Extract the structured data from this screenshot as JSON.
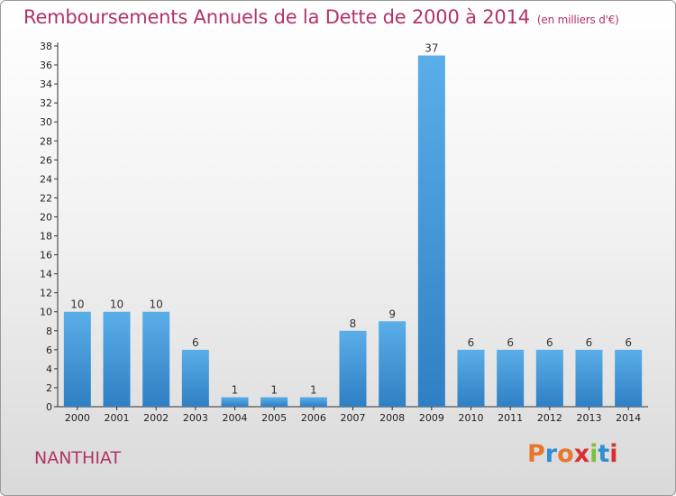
{
  "header": {
    "title": "Remboursements Annuels de la Dette de 2000 à 2014",
    "subtitle": "(en milliers d'€)"
  },
  "footer": {
    "commune": "NANTHIAT",
    "logo": "Proxiti",
    "logo_colors": [
      "#e8772e",
      "#2e8fd1",
      "#e8772e",
      "#d93030",
      "#7fbf3f",
      "#2e8fd1",
      "#d93030"
    ]
  },
  "chart_data": {
    "type": "bar",
    "title": "Remboursements Annuels de la Dette de 2000 à 2014",
    "subtitle": "(en milliers d'€)",
    "categories": [
      "2000",
      "2001",
      "2002",
      "2003",
      "2004",
      "2005",
      "2006",
      "2007",
      "2008",
      "2009",
      "2010",
      "2011",
      "2012",
      "2013",
      "2014"
    ],
    "values": [
      10,
      10,
      10,
      6,
      1,
      1,
      1,
      8,
      9,
      37,
      6,
      6,
      6,
      6,
      6
    ],
    "ylim": [
      0,
      38
    ],
    "yticks": [
      0,
      2,
      4,
      6,
      8,
      10,
      12,
      14,
      16,
      18,
      20,
      22,
      24,
      26,
      28,
      30,
      32,
      34,
      36,
      38
    ],
    "xlabel": "",
    "ylabel": "",
    "grid": false,
    "bar_color_light": "#5aaee8",
    "bar_color_dark": "#2f7fc4"
  }
}
